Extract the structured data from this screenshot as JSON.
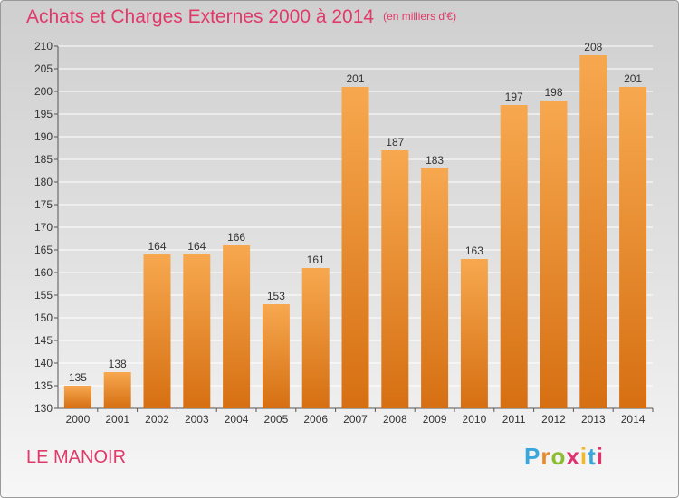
{
  "header": {
    "title": "Achats et Charges Externes 2000 à 2014",
    "subtitle": "(en milliers d'€)"
  },
  "footer": {
    "place": "LE MANOIR",
    "logo": {
      "text": "Proxiti",
      "letter_colors": [
        "#3aa7dc",
        "#e8892b",
        "#8bbd2d",
        "#e0326e",
        "#f0b82a",
        "#3aa7dc",
        "#e0326e"
      ]
    }
  },
  "colors": {
    "bar_top": "#f7a84f",
    "bar_bottom": "#d66f12",
    "title": "#e03a6a",
    "grid": "#ffffff"
  },
  "chart_data": {
    "type": "bar",
    "categories": [
      "2000",
      "2001",
      "2002",
      "2003",
      "2004",
      "2005",
      "2006",
      "2007",
      "2008",
      "2009",
      "2010",
      "2011",
      "2012",
      "2013",
      "2014"
    ],
    "values": [
      135,
      138,
      164,
      164,
      166,
      153,
      161,
      201,
      187,
      183,
      163,
      197,
      198,
      208,
      201
    ],
    "ylim": [
      130,
      210
    ],
    "yticks": [
      130,
      135,
      140,
      145,
      150,
      155,
      160,
      165,
      170,
      175,
      180,
      185,
      190,
      195,
      200,
      205,
      210
    ],
    "grid": true
  }
}
